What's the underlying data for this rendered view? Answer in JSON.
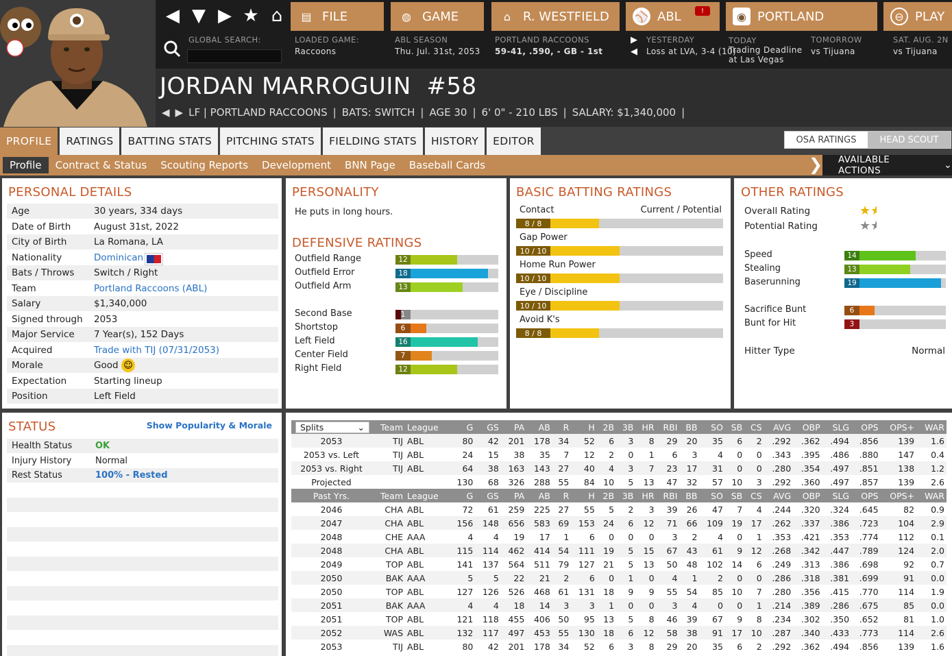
{
  "nav": {
    "file_label": "FILE",
    "game_label": "GAME",
    "manager_label": "R. WESTFIELD",
    "league_label": "ABL",
    "team_label": "PORTLAND",
    "play_label": "PLAY",
    "notification_count": "!"
  },
  "search": {
    "label": "GLOBAL SEARCH:",
    "value": ""
  },
  "loaded_game": {
    "label": "LOADED GAME:",
    "value": "Raccoons"
  },
  "season": {
    "label": "ABL SEASON",
    "value": "Thu. Jul. 31st, 2053"
  },
  "team_record": {
    "label": "PORTLAND RACCOONS",
    "value": "59-41, .590, - GB - 1st"
  },
  "yesterday": {
    "label": "YESTERDAY",
    "value": "Loss at LVA, 3-4 (10)"
  },
  "today": {
    "label": "TODAY",
    "value1": "Trading Deadline",
    "value2": "at Las Vegas"
  },
  "tomorrow": {
    "label": "TOMORROW",
    "value": "vs Tijuana"
  },
  "sat": {
    "label": "SAT. AUG. 2N",
    "value": "vs Tijuana"
  },
  "player": {
    "name": "JORDAN MARROGUIN",
    "number": "#58",
    "position_team": "LF | PORTLAND RACCOONS",
    "bats": "BATS: SWITCH",
    "age": "AGE 30",
    "size": "6' 0\" - 210 LBS",
    "salary": "SALARY: $1,340,000"
  },
  "tabs": [
    "PROFILE",
    "RATINGS",
    "BATTING STATS",
    "PITCHING STATS",
    "FIELDING STATS",
    "HISTORY",
    "EDITOR"
  ],
  "scout_toggle": {
    "a": "OSA RATINGS",
    "b": "HEAD SCOUT"
  },
  "subtabs": [
    "Profile",
    "Contract & Status",
    "Scouting Reports",
    "Development",
    "BNN Page",
    "Baseball Cards"
  ],
  "available_actions": "AVAILABLE ACTIONS",
  "personal": {
    "title": "PERSONAL DETAILS",
    "rows": [
      {
        "k": "Age",
        "v": "30 years, 334 days"
      },
      {
        "k": "Date of Birth",
        "v": "August 31st, 2022"
      },
      {
        "k": "City of Birth",
        "v": "La Romana, LA"
      },
      {
        "k": "Nationality",
        "v": "Dominican"
      },
      {
        "k": "Bats / Throws",
        "v": "Switch / Right"
      },
      {
        "k": "Team",
        "v": "Portland Raccoons (ABL)"
      },
      {
        "k": "Salary",
        "v": "$1,340,000"
      },
      {
        "k": "Signed through",
        "v": "2053"
      },
      {
        "k": "Major Service",
        "v": "7 Year(s), 152 Days"
      },
      {
        "k": "Acquired",
        "v": "Trade with TIJ (07/31/2053)"
      },
      {
        "k": "Morale",
        "v": "Good"
      },
      {
        "k": "Expectation",
        "v": "Starting lineup"
      },
      {
        "k": "Position",
        "v": "Left Field"
      }
    ]
  },
  "personality": {
    "title": "PERSONALITY",
    "text": "He puts in long hours."
  },
  "defense": {
    "title": "DEFENSIVE RATINGS",
    "group1": [
      {
        "k": "Outfield Range",
        "v": "12",
        "color": "#a8c61a"
      },
      {
        "k": "Outfield Error",
        "v": "18",
        "color": "#1aa3d8"
      },
      {
        "k": "Outfield Arm",
        "v": "13",
        "color": "#9fcf22"
      }
    ],
    "group2": [
      {
        "k": "Second Base",
        "v": "1",
        "color": "#8a0d0d"
      },
      {
        "k": "Shortstop",
        "v": "6",
        "color": "#e6781a"
      },
      {
        "k": "Left Field",
        "v": "16",
        "color": "#22c4a8"
      },
      {
        "k": "Center Field",
        "v": "7",
        "color": "#e0841e"
      },
      {
        "k": "Right Field",
        "v": "12",
        "color": "#a8c61a"
      }
    ]
  },
  "batting": {
    "title": "BASIC BATTING RATINGS",
    "header": "Current / Potential",
    "rows": [
      {
        "k": "Contact",
        "v": "8 / 8",
        "cur": 8,
        "max": 20
      },
      {
        "k": "Gap Power",
        "v": "10 / 10",
        "cur": 10,
        "max": 20
      },
      {
        "k": "Home Run Power",
        "v": "10 / 10",
        "cur": 10,
        "max": 20
      },
      {
        "k": "Eye / Discipline",
        "v": "10 / 10",
        "cur": 10,
        "max": 20
      },
      {
        "k": "Avoid K's",
        "v": "8 / 8",
        "cur": 8,
        "max": 20
      }
    ]
  },
  "other": {
    "title": "OTHER RATINGS",
    "overall_label": "Overall Rating",
    "potential_label": "Potential Rating",
    "overall_stars": 1.5,
    "potential_stars": 1.5,
    "running": [
      {
        "k": "Speed",
        "v": "14",
        "color": "#5ec21a"
      },
      {
        "k": "Stealing",
        "v": "13",
        "color": "#8fd022"
      },
      {
        "k": "Baserunning",
        "v": "19",
        "color": "#1a9fd8"
      }
    ],
    "bunt": [
      {
        "k": "Sacrifice Bunt",
        "v": "6",
        "color": "#e6781a"
      },
      {
        "k": "Bunt for Hit",
        "v": "3",
        "color": "#e21e1e"
      }
    ],
    "hitter_label": "Hitter Type",
    "hitter_value": "Normal"
  },
  "status": {
    "title": "STATUS",
    "link": "Show Popularity & Morale",
    "rows": [
      {
        "k": "Health Status",
        "v": "OK"
      },
      {
        "k": "Injury History",
        "v": "Normal"
      },
      {
        "k": "Rest Status",
        "v": "100% - Rested"
      }
    ]
  },
  "stats": {
    "splits_select": "Splits",
    "header1": [
      "Team",
      "League",
      "G",
      "GS",
      "PA",
      "AB",
      "R",
      "H",
      "2B",
      "3B",
      "HR",
      "RBI",
      "BB",
      "SO",
      "SB",
      "CS",
      "AVG",
      "OBP",
      "SLG",
      "OPS",
      "OPS+",
      "WAR"
    ],
    "rows1": [
      [
        "2053",
        "TIJ",
        "ABL",
        "80",
        "42",
        "201",
        "178",
        "34",
        "52",
        "6",
        "3",
        "8",
        "29",
        "20",
        "35",
        "6",
        "2",
        ".292",
        ".362",
        ".494",
        ".856",
        "139",
        "1.6"
      ],
      [
        "2053 vs. Left",
        "TIJ",
        "ABL",
        "24",
        "15",
        "38",
        "35",
        "7",
        "12",
        "2",
        "0",
        "1",
        "6",
        "3",
        "4",
        "0",
        "0",
        ".343",
        ".395",
        ".486",
        ".880",
        "147",
        "0.4"
      ],
      [
        "2053 vs. Right",
        "TIJ",
        "ABL",
        "64",
        "38",
        "163",
        "143",
        "27",
        "40",
        "4",
        "3",
        "7",
        "23",
        "17",
        "31",
        "0",
        "0",
        ".280",
        ".354",
        ".497",
        ".851",
        "138",
        "1.2"
      ],
      [
        "Projected",
        "",
        "",
        "130",
        "68",
        "326",
        "288",
        "55",
        "84",
        "10",
        "5",
        "13",
        "47",
        "32",
        "57",
        "10",
        "3",
        ".292",
        ".360",
        ".497",
        ".857",
        "139",
        "2.6"
      ]
    ],
    "header2_first": "Past Yrs.",
    "rows2": [
      [
        "2046",
        "CHA",
        "ABL",
        "72",
        "61",
        "259",
        "225",
        "27",
        "55",
        "5",
        "2",
        "3",
        "39",
        "26",
        "47",
        "7",
        "4",
        ".244",
        ".320",
        ".324",
        ".645",
        "82",
        "0.9"
      ],
      [
        "2047",
        "CHA",
        "ABL",
        "156",
        "148",
        "656",
        "583",
        "69",
        "153",
        "24",
        "6",
        "12",
        "71",
        "66",
        "109",
        "19",
        "17",
        ".262",
        ".337",
        ".386",
        ".723",
        "104",
        "2.9"
      ],
      [
        "2048",
        "CHE",
        "AAA",
        "4",
        "4",
        "19",
        "17",
        "1",
        "6",
        "0",
        "0",
        "0",
        "3",
        "2",
        "4",
        "0",
        "1",
        ".353",
        ".421",
        ".353",
        ".774",
        "112",
        "0.1"
      ],
      [
        "2048",
        "CHA",
        "ABL",
        "115",
        "114",
        "462",
        "414",
        "54",
        "111",
        "19",
        "5",
        "15",
        "67",
        "43",
        "61",
        "9",
        "12",
        ".268",
        ".342",
        ".447",
        ".789",
        "124",
        "2.0"
      ],
      [
        "2049",
        "TOP",
        "ABL",
        "141",
        "137",
        "564",
        "511",
        "79",
        "127",
        "21",
        "5",
        "13",
        "50",
        "48",
        "102",
        "14",
        "6",
        ".249",
        ".313",
        ".386",
        ".698",
        "92",
        "0.7"
      ],
      [
        "2050",
        "BAK",
        "AAA",
        "5",
        "5",
        "22",
        "21",
        "2",
        "6",
        "0",
        "1",
        "0",
        "4",
        "1",
        "2",
        "0",
        "0",
        ".286",
        ".318",
        ".381",
        ".699",
        "91",
        "0.0"
      ],
      [
        "2050",
        "TOP",
        "ABL",
        "127",
        "126",
        "526",
        "468",
        "61",
        "131",
        "18",
        "9",
        "9",
        "55",
        "54",
        "85",
        "10",
        "7",
        ".280",
        ".356",
        ".415",
        ".770",
        "114",
        "1.9"
      ],
      [
        "2051",
        "BAK",
        "AAA",
        "4",
        "4",
        "18",
        "14",
        "3",
        "3",
        "1",
        "0",
        "0",
        "3",
        "4",
        "0",
        "0",
        "1",
        ".214",
        ".389",
        ".286",
        ".675",
        "85",
        "0.0"
      ],
      [
        "2051",
        "TOP",
        "ABL",
        "121",
        "118",
        "455",
        "406",
        "50",
        "95",
        "13",
        "5",
        "8",
        "46",
        "39",
        "67",
        "9",
        "8",
        ".234",
        ".302",
        ".350",
        ".652",
        "81",
        "1.0"
      ],
      [
        "2052",
        "WAS",
        "ABL",
        "132",
        "117",
        "497",
        "453",
        "55",
        "130",
        "18",
        "6",
        "12",
        "58",
        "38",
        "91",
        "17",
        "10",
        ".287",
        ".340",
        ".433",
        ".773",
        "114",
        "2.6"
      ],
      [
        "2053",
        "TIJ",
        "ABL",
        "80",
        "42",
        "201",
        "178",
        "34",
        "52",
        "6",
        "3",
        "8",
        "29",
        "20",
        "35",
        "6",
        "2",
        ".292",
        ".362",
        ".494",
        ".856",
        "139",
        "1.6"
      ]
    ]
  },
  "colors": {
    "accent": "#c28a54",
    "title": "#c85a2a",
    "link": "#2a73c4",
    "ok": "#3aa03a"
  }
}
